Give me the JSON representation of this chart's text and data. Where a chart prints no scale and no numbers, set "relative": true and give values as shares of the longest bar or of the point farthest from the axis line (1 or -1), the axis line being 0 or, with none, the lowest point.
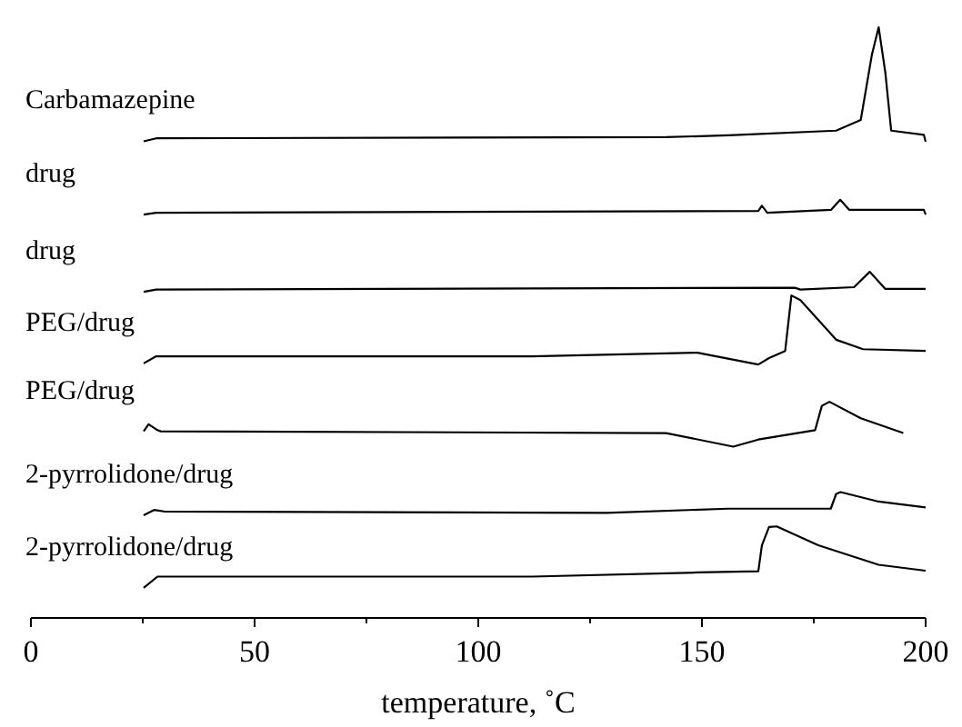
{
  "chart_data": {
    "type": "line",
    "relative": true,
    "xlabel": "temperature, ˚C",
    "xlim": [
      0,
      200
    ],
    "xticks": [
      0,
      {
        "value": 25,
        "label": null
      },
      50,
      {
        "value": 75,
        "label": null
      },
      100,
      {
        "value": 125,
        "label": null
      },
      150,
      {
        "value": 175,
        "label": null
      },
      200
    ],
    "series": [
      {
        "name": "Carbamazepine",
        "color": "#000000",
        "x": [
          25.2,
          28,
          142,
          156,
          180,
          185.5,
          188,
          189.5,
          191,
          192.3,
          199.6,
          200
        ],
        "values": [
          0.807,
          0.812,
          0.814,
          0.817,
          0.825,
          0.843,
          0.954,
          1,
          0.923,
          0.825,
          0.818,
          0.806
        ]
      },
      {
        "name": "drug",
        "color": "#000000",
        "x": [
          25.2,
          28,
          162.6,
          163.4,
          164.6,
          178.9,
          180.9,
          182.9,
          199.6,
          200
        ],
        "values": [
          0.683,
          0.686,
          0.689,
          0.698,
          0.686,
          0.691,
          0.708,
          0.691,
          0.691,
          0.683
        ]
      },
      {
        "name": "drug",
        "color": "#000000",
        "x": [
          25.2,
          28,
          170.7,
          172,
          184,
          187.5,
          191,
          200
        ],
        "values": [
          0.552,
          0.556,
          0.559,
          0.556,
          0.56,
          0.586,
          0.557,
          0.557
        ]
      },
      {
        "name": "PEG/drug",
        "color": "#000000",
        "x": [
          25.2,
          28,
          112,
          149,
          162.6,
          165,
          168.6,
          170,
          172,
          180,
          186,
          200
        ],
        "values": [
          0.431,
          0.443,
          0.443,
          0.449,
          0.429,
          0.44,
          0.452,
          0.546,
          0.538,
          0.471,
          0.455,
          0.452
        ]
      },
      {
        "name": "PEG/drug",
        "color": "#000000",
        "x": [
          25.2,
          26.3,
          28.3,
          29,
          142,
          157,
          162.6,
          175.3,
          176.8,
          178.5,
          185.5,
          195
        ],
        "values": [
          0.316,
          0.328,
          0.318,
          0.316,
          0.313,
          0.29,
          0.302,
          0.318,
          0.359,
          0.366,
          0.338,
          0.313
        ]
      },
      {
        "name": "2-pyrrolidone/drug",
        "color": "#000000",
        "x": [
          25.2,
          27.6,
          30,
          128.6,
          155.7,
          178.8,
          180,
          181,
          189.5,
          200
        ],
        "values": [
          0.174,
          0.183,
          0.18,
          0.178,
          0.185,
          0.185,
          0.21,
          0.213,
          0.197,
          0.187
        ]
      },
      {
        "name": "2-pyrrolidone/drug",
        "color": "#000000",
        "x": [
          25.2,
          28.3,
          112,
          149,
          162.6,
          163.4,
          165,
          166.7,
          176,
          189.5,
          200
        ],
        "values": [
          0.051,
          0.07,
          0.07,
          0.077,
          0.079,
          0.123,
          0.154,
          0.155,
          0.123,
          0.09,
          0.08
        ]
      }
    ]
  }
}
